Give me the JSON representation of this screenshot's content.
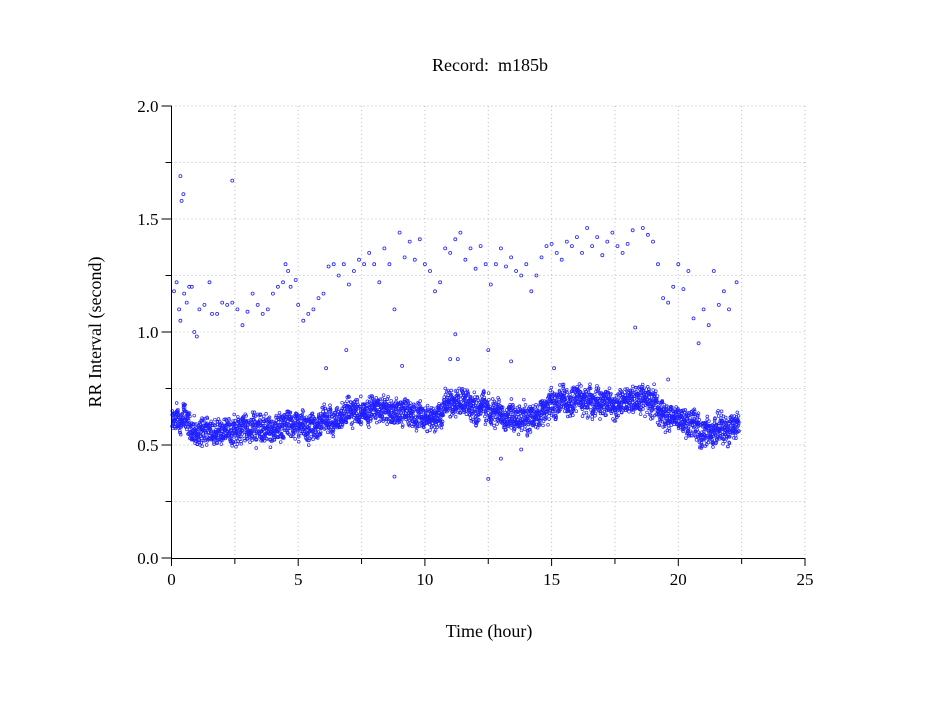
{
  "chart_data": {
    "type": "scatter",
    "title": "Record:  m185b",
    "xlabel": "Time (hour)",
    "ylabel": "RR Interval (second)",
    "xlim": [
      0,
      25
    ],
    "ylim": [
      0,
      2.0
    ],
    "x_ticks": [
      "0",
      "5",
      "10",
      "15",
      "20",
      "25"
    ],
    "y_ticks": [
      "0.0",
      "0.5",
      "1.0",
      "1.5",
      "2.0"
    ],
    "grid": true,
    "marker_color": "#2020ff",
    "band_baseline": {
      "x": [
        0,
        0.5,
        1,
        1.5,
        2,
        2.5,
        3,
        3.5,
        4,
        4.5,
        5,
        5.5,
        6,
        6.5,
        7,
        7.5,
        8,
        8.5,
        9,
        9.5,
        10,
        10.5,
        11,
        11.5,
        12,
        12.5,
        13,
        13.5,
        14,
        14.5,
        15,
        15.5,
        16,
        16.5,
        17,
        17.5,
        18,
        18.5,
        19,
        19.5,
        20,
        20.5,
        21,
        21.5,
        22,
        22.4
      ],
      "y": [
        0.6,
        0.62,
        0.54,
        0.57,
        0.55,
        0.57,
        0.58,
        0.57,
        0.56,
        0.6,
        0.57,
        0.56,
        0.61,
        0.62,
        0.64,
        0.65,
        0.66,
        0.66,
        0.65,
        0.64,
        0.63,
        0.62,
        0.71,
        0.68,
        0.67,
        0.65,
        0.64,
        0.64,
        0.62,
        0.64,
        0.68,
        0.69,
        0.7,
        0.69,
        0.7,
        0.68,
        0.7,
        0.71,
        0.7,
        0.62,
        0.63,
        0.61,
        0.55,
        0.58,
        0.57,
        0.59
      ],
      "spread": 0.07
    },
    "outliers": [
      [
        0.35,
        1.69
      ],
      [
        0.47,
        1.61
      ],
      [
        0.4,
        1.58
      ],
      [
        2.4,
        1.67
      ],
      [
        0.1,
        1.18
      ],
      [
        0.2,
        1.22
      ],
      [
        0.3,
        1.1
      ],
      [
        0.35,
        1.05
      ],
      [
        0.5,
        1.17
      ],
      [
        0.6,
        1.13
      ],
      [
        0.7,
        1.2
      ],
      [
        0.8,
        1.2
      ],
      [
        0.9,
        1.0
      ],
      [
        1.0,
        0.98
      ],
      [
        1.1,
        1.1
      ],
      [
        1.3,
        1.12
      ],
      [
        1.5,
        1.22
      ],
      [
        1.6,
        1.08
      ],
      [
        1.8,
        1.08
      ],
      [
        2.0,
        1.13
      ],
      [
        2.2,
        1.12
      ],
      [
        2.4,
        1.13
      ],
      [
        2.6,
        1.1
      ],
      [
        2.8,
        1.03
      ],
      [
        3.0,
        1.09
      ],
      [
        3.2,
        1.17
      ],
      [
        3.4,
        1.12
      ],
      [
        3.6,
        1.08
      ],
      [
        3.8,
        1.1
      ],
      [
        4.0,
        1.17
      ],
      [
        4.2,
        1.2
      ],
      [
        4.4,
        1.22
      ],
      [
        4.5,
        1.3
      ],
      [
        4.6,
        1.27
      ],
      [
        4.7,
        1.2
      ],
      [
        4.9,
        1.23
      ],
      [
        5.0,
        1.12
      ],
      [
        5.2,
        1.05
      ],
      [
        5.4,
        1.08
      ],
      [
        5.6,
        1.1
      ],
      [
        5.8,
        1.15
      ],
      [
        6.0,
        1.17
      ],
      [
        6.2,
        1.29
      ],
      [
        6.4,
        1.3
      ],
      [
        6.6,
        1.25
      ],
      [
        6.8,
        1.3
      ],
      [
        7.0,
        1.21
      ],
      [
        7.2,
        1.27
      ],
      [
        7.4,
        1.32
      ],
      [
        7.6,
        1.3
      ],
      [
        7.8,
        1.35
      ],
      [
        8.0,
        1.3
      ],
      [
        8.2,
        1.22
      ],
      [
        8.4,
        1.37
      ],
      [
        8.6,
        1.3
      ],
      [
        8.8,
        1.1
      ],
      [
        9.0,
        1.44
      ],
      [
        9.2,
        1.33
      ],
      [
        9.4,
        1.4
      ],
      [
        9.6,
        1.32
      ],
      [
        9.8,
        1.41
      ],
      [
        10.0,
        1.3
      ],
      [
        10.2,
        1.27
      ],
      [
        10.4,
        1.18
      ],
      [
        10.6,
        1.22
      ],
      [
        10.8,
        1.37
      ],
      [
        11.0,
        1.35
      ],
      [
        11.2,
        1.41
      ],
      [
        11.4,
        1.44
      ],
      [
        11.6,
        1.32
      ],
      [
        11.8,
        1.37
      ],
      [
        12.0,
        1.28
      ],
      [
        12.2,
        1.38
      ],
      [
        12.4,
        1.3
      ],
      [
        12.6,
        1.21
      ],
      [
        12.8,
        1.3
      ],
      [
        13.0,
        1.37
      ],
      [
        13.2,
        1.29
      ],
      [
        13.4,
        1.33
      ],
      [
        13.6,
        1.27
      ],
      [
        13.8,
        1.25
      ],
      [
        14.0,
        1.3
      ],
      [
        14.2,
        1.18
      ],
      [
        14.4,
        1.25
      ],
      [
        14.6,
        1.33
      ],
      [
        14.8,
        1.38
      ],
      [
        15.0,
        1.39
      ],
      [
        15.2,
        1.35
      ],
      [
        15.4,
        1.32
      ],
      [
        15.6,
        1.4
      ],
      [
        15.8,
        1.38
      ],
      [
        16.0,
        1.42
      ],
      [
        16.2,
        1.35
      ],
      [
        16.4,
        1.46
      ],
      [
        16.6,
        1.38
      ],
      [
        16.8,
        1.42
      ],
      [
        17.0,
        1.34
      ],
      [
        17.2,
        1.4
      ],
      [
        17.4,
        1.44
      ],
      [
        17.6,
        1.38
      ],
      [
        17.8,
        1.35
      ],
      [
        18.0,
        1.39
      ],
      [
        18.2,
        1.45
      ],
      [
        18.3,
        1.02
      ],
      [
        18.6,
        1.46
      ],
      [
        18.8,
        1.43
      ],
      [
        19.0,
        1.4
      ],
      [
        19.2,
        1.3
      ],
      [
        19.4,
        1.15
      ],
      [
        19.6,
        1.13
      ],
      [
        19.8,
        1.2
      ],
      [
        20.0,
        1.3
      ],
      [
        20.2,
        1.19
      ],
      [
        20.4,
        1.27
      ],
      [
        20.6,
        1.06
      ],
      [
        20.8,
        0.95
      ],
      [
        21.0,
        1.1
      ],
      [
        21.2,
        1.03
      ],
      [
        21.4,
        1.27
      ],
      [
        21.6,
        1.12
      ],
      [
        21.8,
        1.18
      ],
      [
        22.0,
        1.1
      ],
      [
        22.3,
        1.22
      ],
      [
        8.8,
        0.36
      ],
      [
        12.5,
        0.35
      ],
      [
        13.0,
        0.44
      ],
      [
        13.8,
        0.48
      ],
      [
        11.2,
        0.99
      ],
      [
        6.9,
        0.92
      ],
      [
        12.5,
        0.92
      ],
      [
        6.1,
        0.84
      ],
      [
        11.0,
        0.88
      ],
      [
        11.3,
        0.88
      ],
      [
        9.1,
        0.85
      ],
      [
        13.4,
        0.87
      ],
      [
        19.6,
        0.79
      ],
      [
        15.1,
        0.84
      ]
    ]
  }
}
